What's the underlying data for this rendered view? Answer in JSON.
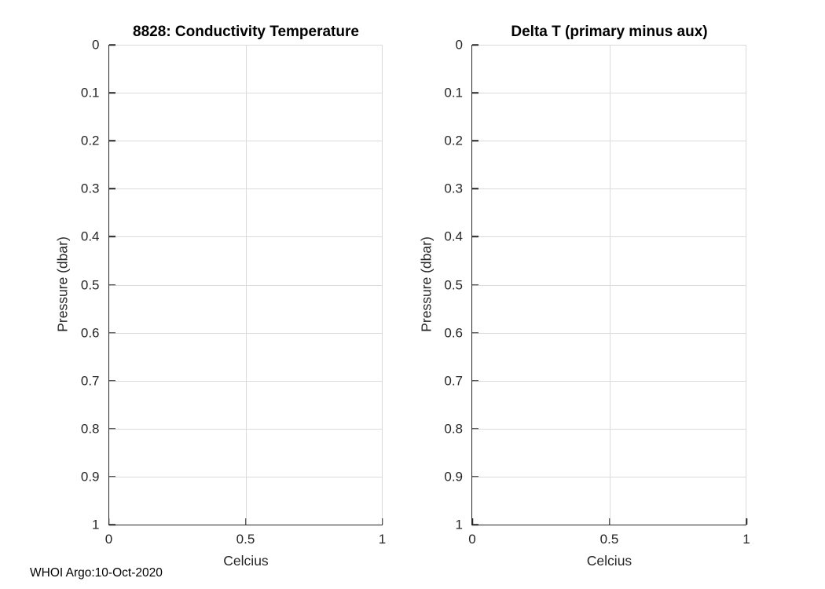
{
  "figure": {
    "watermark": "WHOI Argo:10-Oct-2020",
    "background_color": "#ffffff",
    "axis_color": "#262626",
    "grid_color": "#dbdbdb",
    "title_color": "#000000"
  },
  "chart_data": [
    {
      "type": "line",
      "title": "8828: Conductivity Temperature",
      "xlabel": "Celcius",
      "ylabel": "Pressure (dbar)",
      "xlim": [
        0,
        1
      ],
      "ylim": [
        0,
        1
      ],
      "ydir": "reverse",
      "grid": true,
      "box": false,
      "xticks": {
        "values": [
          0,
          0.5,
          1
        ],
        "labels": [
          "0",
          "0.5",
          "1"
        ]
      },
      "yticks": {
        "values": [
          0,
          0.1,
          0.2,
          0.3,
          0.4,
          0.5,
          0.6,
          0.7,
          0.8,
          0.9,
          1
        ],
        "labels": [
          "0",
          "0.1",
          "0.2",
          "0.3",
          "0.4",
          "0.5",
          "0.6",
          "0.7",
          "0.8",
          "0.9",
          "1"
        ]
      },
      "series": []
    },
    {
      "type": "line",
      "title": "Delta T (primary minus aux)",
      "xlabel": "Celcius",
      "ylabel": "Pressure (dbar)",
      "xlim": [
        0,
        1
      ],
      "ylim": [
        0,
        1
      ],
      "ydir": "reverse",
      "grid": true,
      "box": false,
      "xticks": {
        "values": [
          0,
          0.5,
          1
        ],
        "labels": [
          "0",
          "0.5",
          "1"
        ]
      },
      "yticks": {
        "values": [
          0,
          0.1,
          0.2,
          0.3,
          0.4,
          0.5,
          0.6,
          0.7,
          0.8,
          0.9,
          1
        ],
        "labels": [
          "0",
          "0.1",
          "0.2",
          "0.3",
          "0.4",
          "0.5",
          "0.6",
          "0.7",
          "0.8",
          "0.9",
          "1"
        ]
      },
      "series": []
    }
  ]
}
